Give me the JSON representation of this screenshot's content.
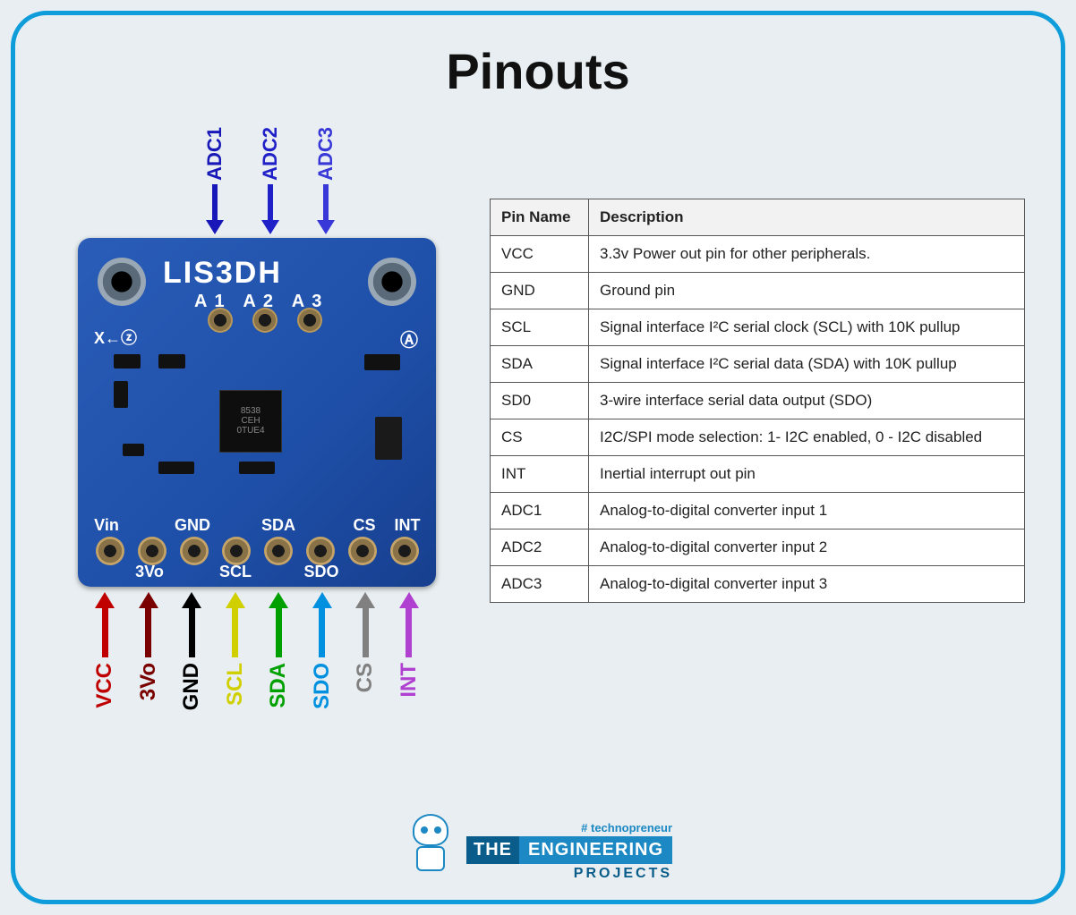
{
  "title": "Pinouts",
  "board": {
    "name": "LIS3DH",
    "chip_label": "8538\\nCEH\\n0TUE4",
    "top_labels": [
      "A1",
      "A2",
      "A3"
    ],
    "axis_text": "X←ⓩ",
    "axis_a": "Ⓐ",
    "bottom_silkscreen_row1": [
      "Vin",
      "",
      "GND",
      "",
      "SDA",
      "",
      "CS",
      "INT"
    ],
    "bottom_silkscreen_row2": [
      "",
      "3Vo",
      "",
      "SCL",
      "",
      "SDO",
      "",
      ""
    ],
    "pcb_color": "#1e4fa8"
  },
  "top_arrows": [
    {
      "label": "ADC1",
      "color": "#1818b8"
    },
    {
      "label": "ADC2",
      "color": "#2020c8"
    },
    {
      "label": "ADC3",
      "color": "#3838d8"
    }
  ],
  "bottom_arrows": [
    {
      "label": "VCC",
      "color": "#c00000"
    },
    {
      "label": "3Vo",
      "color": "#7a0000"
    },
    {
      "label": "GND",
      "color": "#000000"
    },
    {
      "label": "SCL",
      "color": "#d0d000"
    },
    {
      "label": "SDA",
      "color": "#00a000"
    },
    {
      "label": "SDO",
      "color": "#0090e0"
    },
    {
      "label": "CS",
      "color": "#808080"
    },
    {
      "label": "INT",
      "color": "#b040d0"
    }
  ],
  "table": {
    "header": [
      "Pin Name",
      "Description"
    ],
    "rows": [
      [
        "VCC",
        "3.3v Power out pin for other peripherals."
      ],
      [
        "GND",
        "Ground pin"
      ],
      [
        "SCL",
        "Signal interface I²C serial clock (SCL) with 10K pullup"
      ],
      [
        "SDA",
        "Signal interface I²C serial data (SDA) with 10K pullup"
      ],
      [
        "SD0",
        "3-wire interface serial data output (SDO)"
      ],
      [
        "CS",
        " I2C/SPI mode selection: 1- I2C enabled, 0 - I2C disabled"
      ],
      [
        "INT",
        "Inertial interrupt out pin"
      ],
      [
        "ADC1",
        " Analog-to-digital converter input 1"
      ],
      [
        "ADC2",
        " Analog-to-digital converter input 2"
      ],
      [
        "ADC3",
        " Analog-to-digital converter input 3"
      ]
    ]
  },
  "footer": {
    "tagline": "# technopreneur",
    "word1": "THE",
    "word2": "ENGINEERING",
    "word3": "PROJECTS"
  },
  "style": {
    "frame_border_color": "#0e9dda",
    "background": "#e8eef1",
    "title_fontsize": 56,
    "table_border_color": "#555555",
    "table_header_bg": "#f2f2f2"
  }
}
